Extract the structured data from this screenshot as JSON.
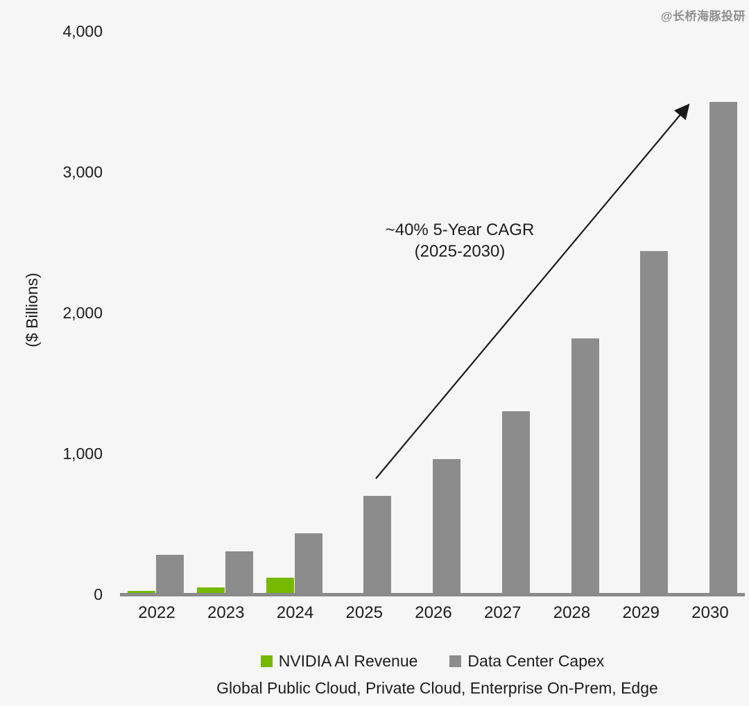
{
  "watermark": "@长桥海豚投研",
  "chart_data": {
    "type": "bar",
    "categories": [
      "2022",
      "2023",
      "2024",
      "2025",
      "2026",
      "2027",
      "2028",
      "2029",
      "2030"
    ],
    "series": [
      {
        "name": "NVIDIA AI Revenue",
        "color": "#76B900",
        "values": [
          25,
          50,
          120,
          null,
          null,
          null,
          null,
          null,
          null
        ]
      },
      {
        "name": "Data Center Capex",
        "color": "#8C8C8C",
        "values": [
          280,
          305,
          435,
          700,
          960,
          1300,
          1820,
          2440,
          3500
        ]
      }
    ],
    "title": "",
    "xlabel": "",
    "ylabel": "($ Billions)",
    "ylim": [
      0,
      4000
    ],
    "yticks": [
      0,
      1000,
      2000,
      3000,
      4000
    ],
    "ytick_labels": [
      "0",
      "1,000",
      "2,000",
      "3,000",
      "4,000"
    ],
    "grid": false,
    "legend_position": "bottom",
    "annotation": {
      "line1": "~40% 5-Year CAGR",
      "line2": "(2025-2030)"
    },
    "caption": "Global Public Cloud, Private Cloud, Enterprise On-Prem, Edge",
    "background_color": "#F6F6F6",
    "axis_color": "#8A8A8A"
  }
}
